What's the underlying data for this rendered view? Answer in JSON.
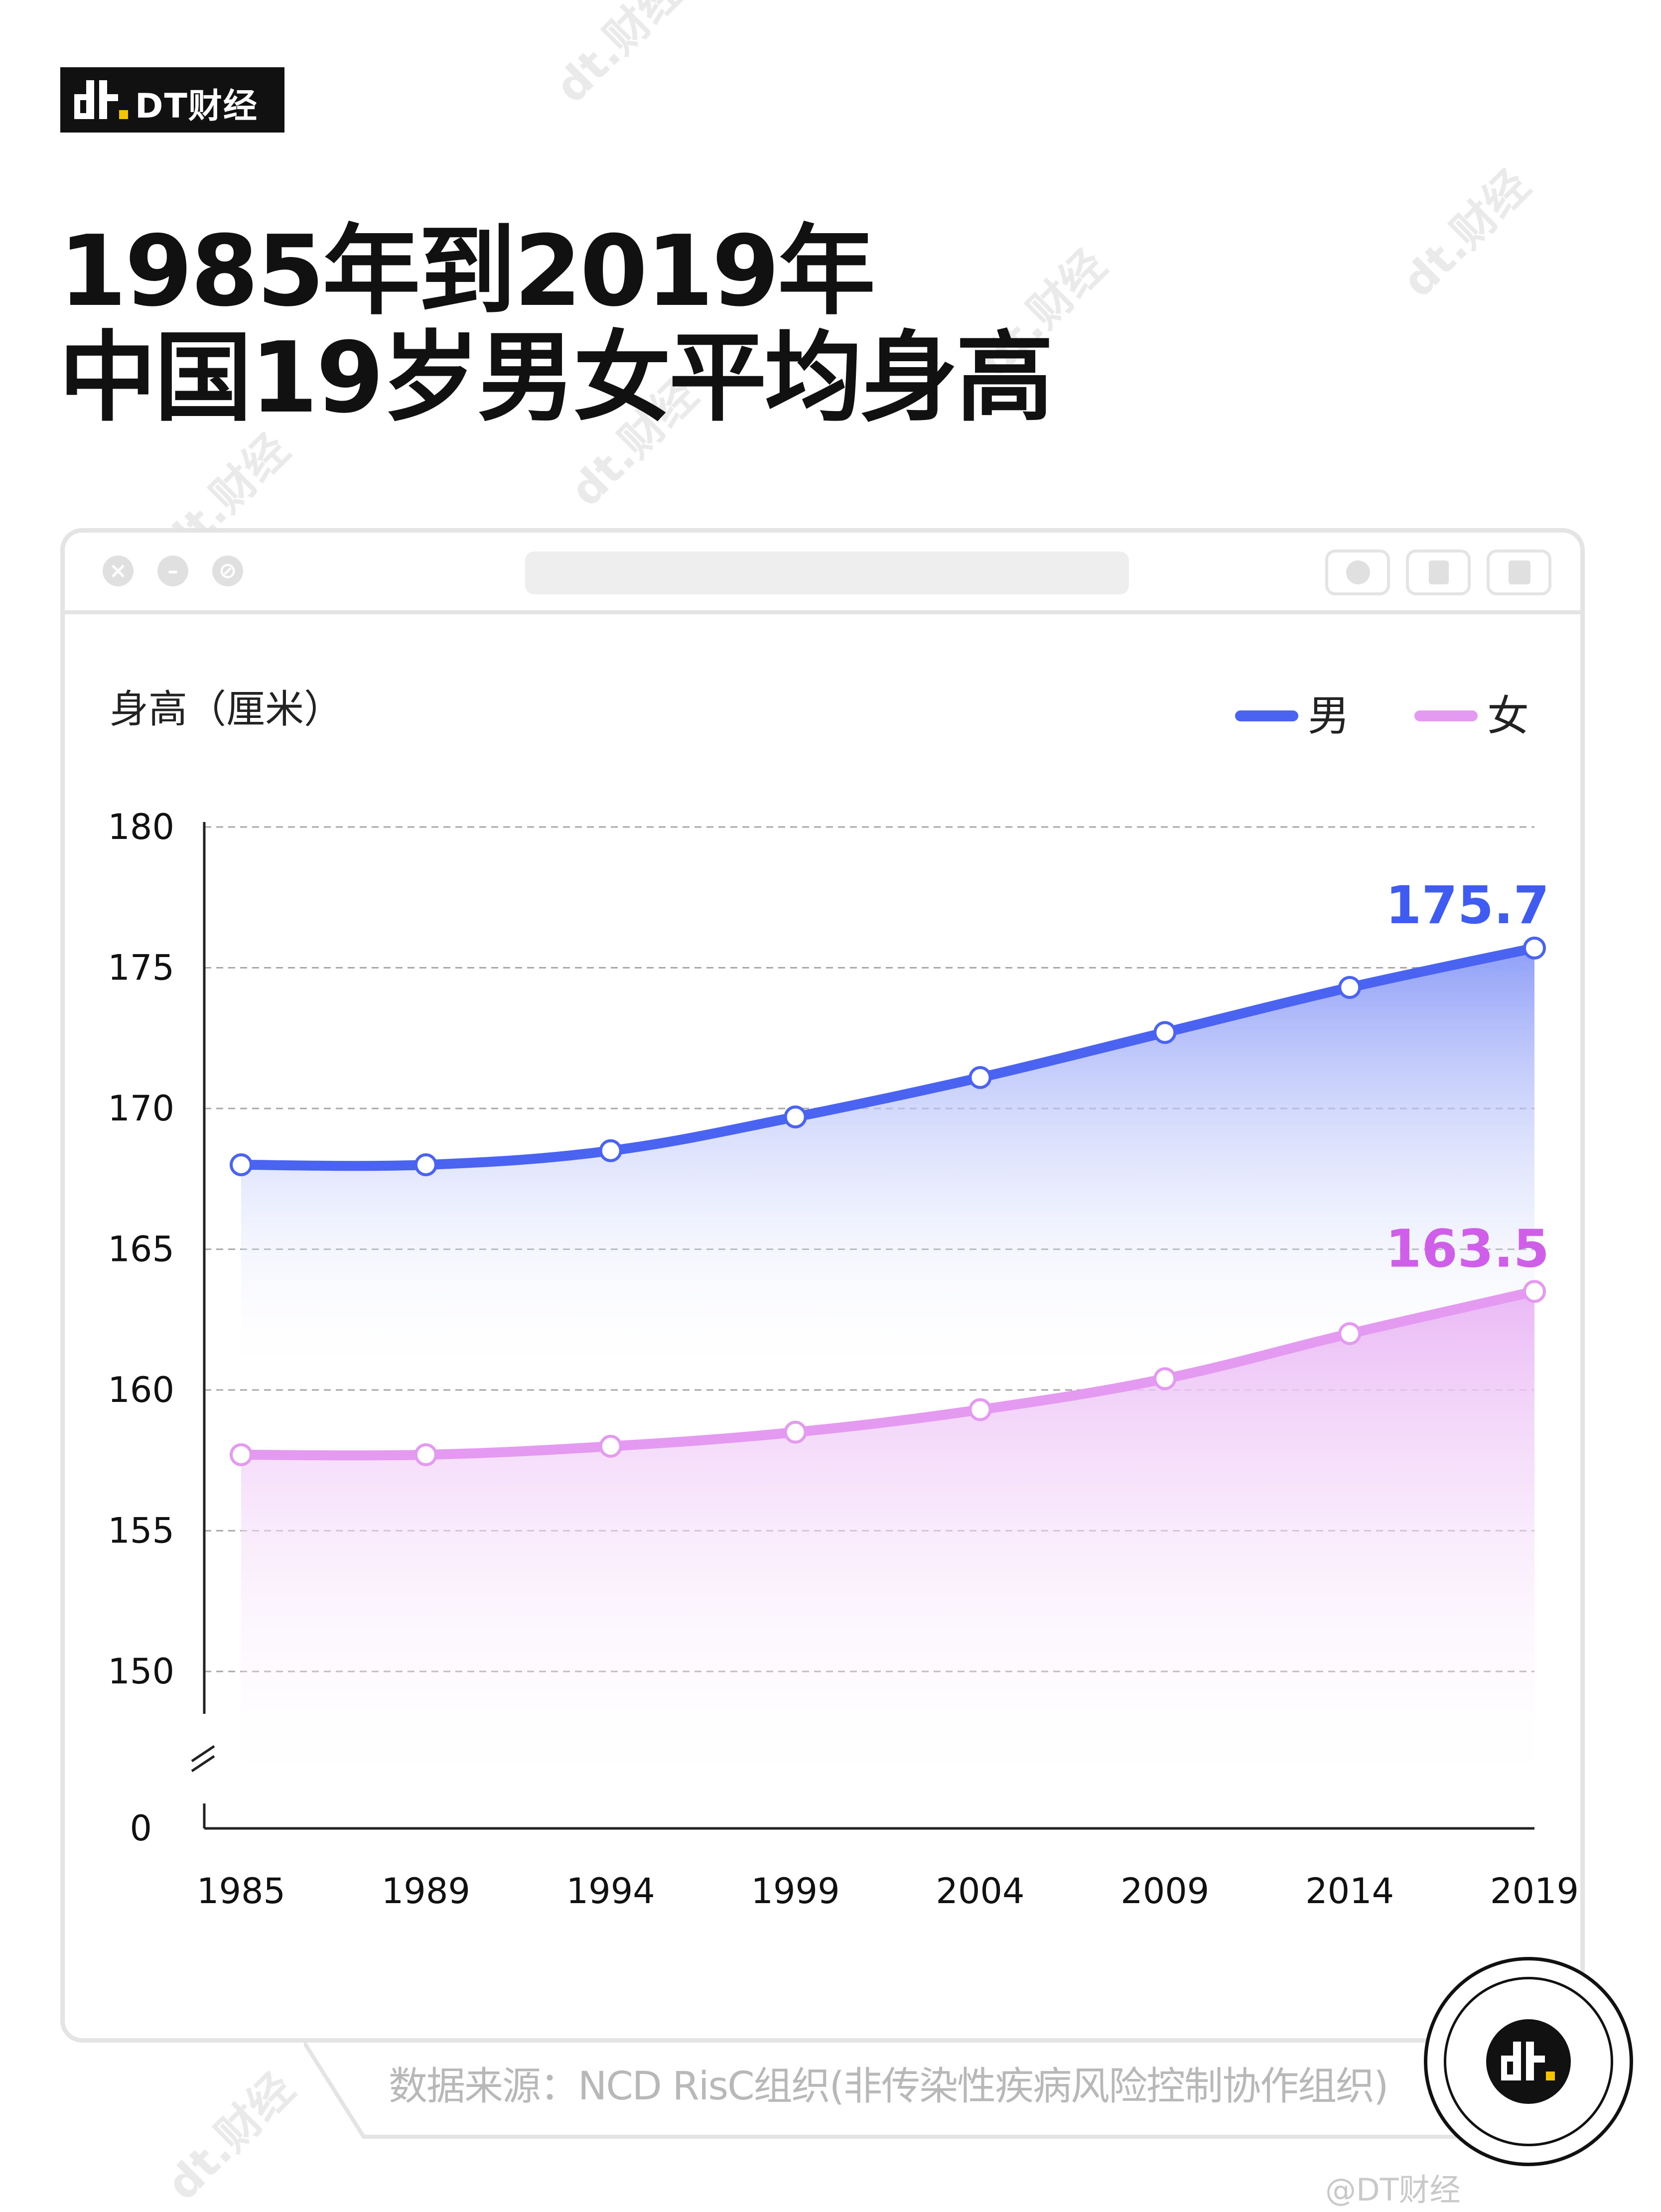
{
  "brand": {
    "name": "DT财经",
    "watermark": "dt.财经"
  },
  "title": {
    "line1": "1985年到2019年",
    "line2": "中国19岁男女平均身高"
  },
  "source": "数据来源：NCD RisC组织(非传染性疾病风险控制协作组织)",
  "credit": "@DT财经",
  "colors": {
    "male": "#4a63f0",
    "female": "#e39af0",
    "male_label": "#3f5bf0",
    "female_label": "#cf5fe8"
  },
  "chart_data": {
    "type": "area",
    "ylabel": "身高（厘米）",
    "x": [
      "1985",
      "1989",
      "1994",
      "1999",
      "2004",
      "2009",
      "2014",
      "2019"
    ],
    "yticks": [
      "180",
      "175",
      "170",
      "165",
      "160",
      "155",
      "150"
    ],
    "ybreak_label": "0",
    "ylim": [
      150,
      180
    ],
    "axis_break": true,
    "grid": true,
    "legend_position": "top-right",
    "series": [
      {
        "name": "男",
        "key": "male",
        "values": [
          168.0,
          168.0,
          168.5,
          169.7,
          171.1,
          172.7,
          174.3,
          175.7
        ],
        "end_label": "175.7"
      },
      {
        "name": "女",
        "key": "female",
        "values": [
          157.7,
          157.7,
          158.0,
          158.5,
          159.3,
          160.4,
          162.0,
          163.5
        ],
        "end_label": "163.5"
      }
    ]
  }
}
